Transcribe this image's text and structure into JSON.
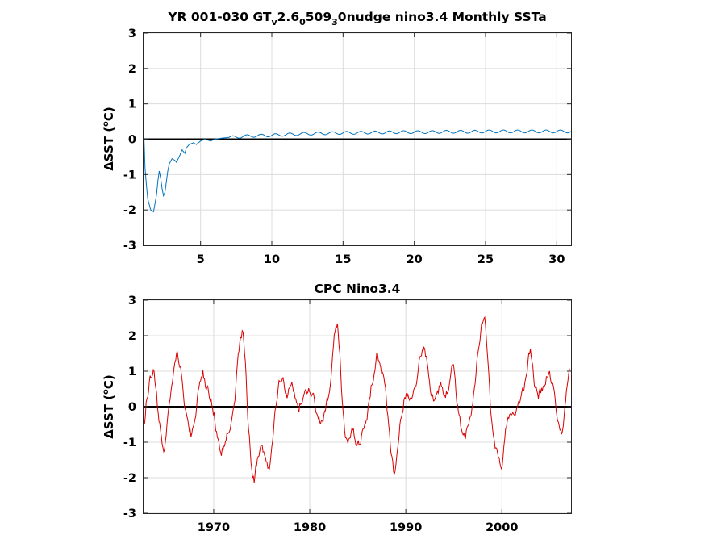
{
  "chart_data": [
    {
      "type": "line",
      "title": {
        "main1": "YR 001-030 GT",
        "sub1": "v",
        "main2": "2.6",
        "sub2": "0",
        "main3": "509",
        "sub3": "3",
        "main4": "0nudge nino3.4 Monthly SSTa"
      },
      "xlabel": "",
      "ylabel_delta": "Δ",
      "ylabel_pre": "SST (",
      "ylabel_sup": "o",
      "ylabel_post": "C)",
      "xlim": [
        1,
        31
      ],
      "ylim": [
        -3,
        3
      ],
      "xticks": [
        5,
        10,
        15,
        20,
        25,
        30
      ],
      "yticks": [
        -3,
        -2,
        -1,
        0,
        1,
        2,
        3
      ],
      "grid": true,
      "zero_line": true,
      "line_color": "#0072bd",
      "series": [
        {
          "x": [
            1.0,
            1.1,
            1.2,
            1.3,
            1.5,
            1.7,
            1.9,
            2.0,
            2.1,
            2.2,
            2.3,
            2.4,
            2.5,
            2.6,
            2.7,
            2.8,
            3.0,
            3.2,
            3.3,
            3.5,
            3.7,
            3.9,
            4.0,
            4.2,
            4.5,
            4.7,
            5.0,
            5.3,
            5.7,
            6.0,
            6.5,
            7.0,
            7.5,
            8.0,
            9.0,
            10.0,
            11.0,
            12.0,
            13.0,
            14.0,
            15.0,
            16.0,
            17.0,
            18.0,
            19.0,
            20.0,
            21.0,
            22.0,
            23.0,
            24.0,
            25.0,
            26.0,
            27.0,
            28.0,
            29.0,
            30.0,
            31.0
          ],
          "y": [
            0.4,
            -0.8,
            -1.3,
            -1.7,
            -2.0,
            -2.05,
            -1.6,
            -1.2,
            -0.9,
            -1.1,
            -1.4,
            -1.6,
            -1.5,
            -1.2,
            -0.9,
            -0.7,
            -0.55,
            -0.6,
            -0.65,
            -0.5,
            -0.3,
            -0.4,
            -0.25,
            -0.15,
            -0.1,
            -0.15,
            -0.05,
            0.0,
            -0.05,
            0.0,
            0.03,
            0.05,
            0.06,
            0.08,
            0.1,
            0.11,
            0.13,
            0.15,
            0.16,
            0.17,
            0.18,
            0.18,
            0.19,
            0.19,
            0.2,
            0.2,
            0.2,
            0.21,
            0.21,
            0.21,
            0.22,
            0.22,
            0.22,
            0.22,
            0.22,
            0.22,
            0.22
          ],
          "seasonal_amplitude": 0.04,
          "seasonal_from_x": 7.0
        }
      ]
    },
    {
      "type": "line",
      "title": "CPC Nino3.4",
      "xlabel": "",
      "ylabel_delta": "Δ",
      "ylabel_pre": "SST (",
      "ylabel_sup": "o",
      "ylabel_post": "C)",
      "xlim": [
        1962.7,
        2007.2
      ],
      "ylim": [
        -3,
        3
      ],
      "xticks": [
        1970,
        1980,
        1990,
        2000
      ],
      "yticks": [
        -3,
        -2,
        -1,
        0,
        1,
        2,
        3
      ],
      "grid": true,
      "zero_line": true,
      "line_color": "#d90000",
      "series": [
        {
          "x": [
            1962.8,
            1963.0,
            1963.4,
            1963.8,
            1964.0,
            1964.3,
            1964.6,
            1964.9,
            1965.2,
            1965.6,
            1965.9,
            1966.2,
            1966.6,
            1966.9,
            1967.3,
            1967.7,
            1968.0,
            1968.3,
            1968.6,
            1968.9,
            1969.3,
            1969.7,
            1970.0,
            1970.4,
            1970.8,
            1971.0,
            1971.3,
            1971.6,
            1971.9,
            1972.2,
            1972.5,
            1972.8,
            1973.0,
            1973.3,
            1973.6,
            1973.9,
            1974.2,
            1974.6,
            1975.0,
            1975.4,
            1975.8,
            1976.0,
            1976.4,
            1976.8,
            1977.2,
            1977.6,
            1978.0,
            1978.4,
            1978.8,
            1979.2,
            1979.6,
            1980.0,
            1980.4,
            1980.8,
            1981.2,
            1981.6,
            1982.0,
            1982.3,
            1982.6,
            1982.9,
            1983.1,
            1983.4,
            1983.7,
            1984.0,
            1984.4,
            1984.8,
            1985.2,
            1985.6,
            1986.0,
            1986.4,
            1986.8,
            1987.0,
            1987.3,
            1987.6,
            1987.9,
            1988.2,
            1988.5,
            1988.8,
            1989.1,
            1989.4,
            1989.8,
            1990.2,
            1990.6,
            1991.0,
            1991.3,
            1991.6,
            1991.9,
            1992.2,
            1992.5,
            1992.8,
            1993.2,
            1993.6,
            1994.0,
            1994.4,
            1994.8,
            1995.0,
            1995.4,
            1995.8,
            1996.2,
            1996.6,
            1997.0,
            1997.3,
            1997.6,
            1997.9,
            1998.2,
            1998.5,
            1998.8,
            1999.2,
            1999.6,
            2000.0,
            2000.4,
            2000.8,
            2001.2,
            2001.6,
            2002.0,
            2002.4,
            2002.8,
            2003.0,
            2003.4,
            2003.8,
            2004.2,
            2004.6,
            2005.0,
            2005.4,
            2005.8,
            2006.2,
            2006.6,
            2007.0,
            2007.1
          ],
          "y": [
            -0.5,
            0.2,
            0.8,
            1.1,
            0.5,
            -0.4,
            -1.0,
            -1.2,
            -0.3,
            0.6,
            1.2,
            1.6,
            1.1,
            0.2,
            -0.5,
            -0.8,
            -0.5,
            0.2,
            0.6,
            0.9,
            0.5,
            0.2,
            -0.1,
            -0.9,
            -1.4,
            -1.2,
            -0.8,
            -0.6,
            -0.2,
            0.3,
            1.2,
            1.9,
            2.2,
            1.2,
            -0.5,
            -1.6,
            -2.1,
            -1.4,
            -1.0,
            -1.5,
            -1.8,
            -1.2,
            -0.2,
            0.6,
            0.7,
            0.3,
            0.8,
            0.4,
            -0.1,
            0.2,
            0.5,
            0.4,
            0.2,
            -0.3,
            -0.5,
            -0.2,
            0.3,
            1.2,
            2.0,
            2.4,
            1.6,
            0.2,
            -0.9,
            -1.0,
            -0.5,
            -0.9,
            -1.1,
            -0.5,
            -0.2,
            0.6,
            1.2,
            1.5,
            1.3,
            1.0,
            0.4,
            -0.5,
            -1.4,
            -1.9,
            -1.3,
            -0.4,
            0.2,
            0.3,
            0.4,
            0.7,
            1.1,
            1.5,
            1.8,
            1.3,
            0.6,
            0.2,
            0.3,
            0.6,
            0.3,
            0.5,
            1.2,
            1.0,
            0.0,
            -0.6,
            -0.8,
            -0.3,
            0.1,
            0.9,
            1.8,
            2.4,
            2.5,
            1.4,
            0.0,
            -1.1,
            -1.5,
            -1.6,
            -0.6,
            -0.4,
            -0.2,
            0.0,
            0.3,
            0.7,
            1.4,
            1.5,
            0.6,
            0.3,
            0.5,
            0.8,
            0.8,
            0.6,
            -0.3,
            -0.8,
            0.1,
            0.9,
            1.3
          ],
          "noise_amplitude": 0.25
        }
      ]
    }
  ]
}
